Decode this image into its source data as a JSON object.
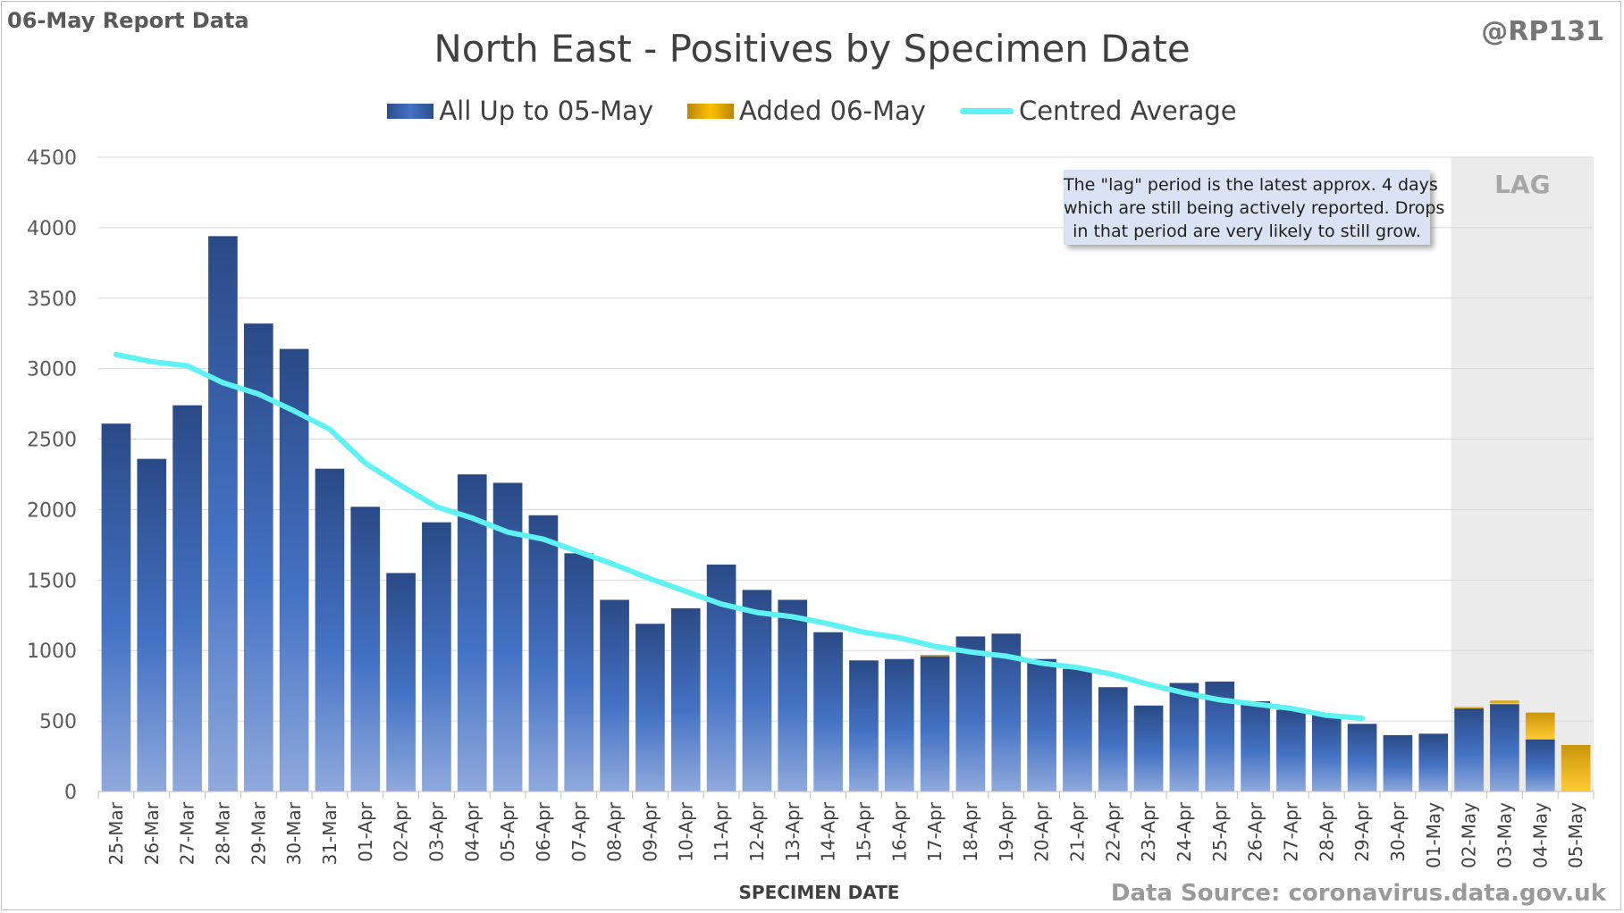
{
  "report_label": "06-May Report Data",
  "handle": "@RP131",
  "source_text": "Data Source: coronavirus.data.gov.uk",
  "note": {
    "line1": "The \"lag\" period is the latest approx. 4 days",
    "line2": "which are still being actively reported.  Drops",
    "line3": "in that period are very likely to still grow."
  },
  "chart_data": {
    "type": "bar",
    "title": "North East - Positives by Specimen Date",
    "xlabel": "SPECIMEN DATE",
    "ylabel": "",
    "ylim": [
      0,
      4500
    ],
    "yticks": [
      0,
      500,
      1000,
      1500,
      2000,
      2500,
      3000,
      3500,
      4000,
      4500
    ],
    "grid": true,
    "legend_position": "top",
    "stacked": true,
    "lag_label": "LAG",
    "lag_start_category": "02-May",
    "categories": [
      "25-Mar",
      "26-Mar",
      "27-Mar",
      "28-Mar",
      "29-Mar",
      "30-Mar",
      "31-Mar",
      "01-Apr",
      "02-Apr",
      "03-Apr",
      "04-Apr",
      "05-Apr",
      "06-Apr",
      "07-Apr",
      "08-Apr",
      "09-Apr",
      "10-Apr",
      "11-Apr",
      "12-Apr",
      "13-Apr",
      "14-Apr",
      "15-Apr",
      "16-Apr",
      "17-Apr",
      "18-Apr",
      "19-Apr",
      "20-Apr",
      "21-Apr",
      "22-Apr",
      "23-Apr",
      "24-Apr",
      "25-Apr",
      "26-Apr",
      "27-Apr",
      "28-Apr",
      "29-Apr",
      "30-Apr",
      "01-May",
      "02-May",
      "03-May",
      "04-May",
      "05-May"
    ],
    "series": [
      {
        "name": "All Up to 05-May",
        "color": "#4472c4",
        "values": [
          2610,
          2360,
          2740,
          3940,
          3320,
          3140,
          2290,
          2020,
          1550,
          1910,
          2250,
          2190,
          1960,
          1690,
          1360,
          1190,
          1300,
          1610,
          1430,
          1360,
          1130,
          930,
          940,
          960,
          1100,
          1120,
          940,
          870,
          740,
          610,
          770,
          780,
          640,
          580,
          550,
          480,
          400,
          410,
          590,
          620,
          370,
          0
        ]
      },
      {
        "name": "Added 06-May",
        "color": "#ffc000",
        "values": [
          0,
          0,
          0,
          0,
          0,
          0,
          0,
          0,
          0,
          0,
          0,
          0,
          0,
          0,
          0,
          0,
          0,
          0,
          0,
          0,
          0,
          0,
          0,
          10,
          0,
          0,
          0,
          0,
          0,
          0,
          0,
          0,
          0,
          0,
          0,
          0,
          0,
          0,
          10,
          25,
          190,
          330
        ]
      },
      {
        "name": "Centred Average",
        "color": "#5ef2f2",
        "type": "line",
        "values": [
          3100,
          3050,
          3020,
          2900,
          2820,
          2700,
          2570,
          2330,
          2170,
          2020,
          1940,
          1840,
          1790,
          1700,
          1610,
          1510,
          1420,
          1330,
          1270,
          1240,
          1190,
          1130,
          1090,
          1030,
          990,
          960,
          910,
          880,
          830,
          760,
          700,
          650,
          620,
          590,
          540,
          520,
          null,
          null,
          null,
          null,
          null,
          null
        ]
      }
    ]
  }
}
